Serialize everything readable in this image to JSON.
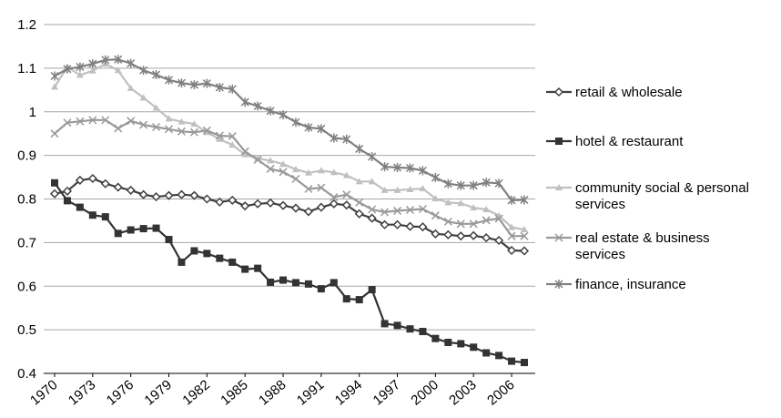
{
  "chart_data": {
    "type": "line",
    "title": "",
    "xlabel": "",
    "ylabel": "",
    "ylim": [
      0.4,
      1.2
    ],
    "yticks": [
      "0.4",
      "0.5",
      "0.6",
      "0.7",
      "0.8",
      "0.9",
      "1",
      "1.1",
      "1.2"
    ],
    "xlim": [
      1970,
      2007
    ],
    "xticks": [
      "1970",
      "1973",
      "1976",
      "1979",
      "1982",
      "1985",
      "1988",
      "1991",
      "1994",
      "1997",
      "2000",
      "2003",
      "2006"
    ],
    "grid": "horizontal",
    "legend_position": "right",
    "x": [
      1970,
      1971,
      1972,
      1973,
      1974,
      1975,
      1976,
      1977,
      1978,
      1979,
      1980,
      1981,
      1982,
      1983,
      1984,
      1985,
      1986,
      1987,
      1988,
      1989,
      1990,
      1991,
      1992,
      1993,
      1994,
      1995,
      1996,
      1997,
      1998,
      1999,
      2000,
      2001,
      2002,
      2003,
      2004,
      2005,
      2006,
      2007
    ],
    "series": [
      {
        "name": "retail & wholesale",
        "color": "#404040",
        "marker": "diamond",
        "values": [
          0.812,
          0.818,
          0.843,
          0.847,
          0.835,
          0.827,
          0.82,
          0.81,
          0.805,
          0.808,
          0.81,
          0.808,
          0.8,
          0.793,
          0.797,
          0.784,
          0.789,
          0.791,
          0.785,
          0.779,
          0.771,
          0.781,
          0.789,
          0.786,
          0.766,
          0.756,
          0.741,
          0.741,
          0.737,
          0.736,
          0.72,
          0.718,
          0.715,
          0.716,
          0.711,
          0.705,
          0.682,
          0.681
        ]
      },
      {
        "name": "hotel & restaurant",
        "color": "#333333",
        "marker": "square",
        "values": [
          0.837,
          0.796,
          0.781,
          0.763,
          0.759,
          0.721,
          0.729,
          0.732,
          0.733,
          0.707,
          0.655,
          0.681,
          0.675,
          0.664,
          0.655,
          0.639,
          0.641,
          0.609,
          0.614,
          0.608,
          0.605,
          0.594,
          0.608,
          0.571,
          0.569,
          0.592,
          0.514,
          0.51,
          0.502,
          0.496,
          0.48,
          0.471,
          0.468,
          0.46,
          0.447,
          0.441,
          0.428,
          0.425
        ]
      },
      {
        "name": "community social & personal services",
        "color": "#c0c0c0",
        "marker": "triangle",
        "values": [
          1.057,
          1.103,
          1.084,
          1.094,
          1.11,
          1.095,
          1.054,
          1.032,
          1.009,
          0.984,
          0.977,
          0.972,
          0.953,
          0.937,
          0.924,
          0.902,
          0.893,
          0.888,
          0.88,
          0.868,
          0.86,
          0.865,
          0.861,
          0.854,
          0.84,
          0.84,
          0.82,
          0.82,
          0.822,
          0.824,
          0.801,
          0.792,
          0.79,
          0.78,
          0.776,
          0.762,
          0.735,
          0.73
        ]
      },
      {
        "name": "real estate & business services",
        "color": "#999999",
        "marker": "x",
        "values": [
          0.95,
          0.975,
          0.978,
          0.981,
          0.981,
          0.962,
          0.979,
          0.97,
          0.965,
          0.96,
          0.955,
          0.953,
          0.957,
          0.945,
          0.944,
          0.909,
          0.89,
          0.869,
          0.862,
          0.846,
          0.823,
          0.826,
          0.804,
          0.81,
          0.792,
          0.776,
          0.77,
          0.773,
          0.775,
          0.777,
          0.762,
          0.748,
          0.743,
          0.743,
          0.751,
          0.755,
          0.715,
          0.715
        ]
      },
      {
        "name": "finance, insurance",
        "color": "#808080",
        "marker": "star",
        "values": [
          1.082,
          1.098,
          1.103,
          1.11,
          1.119,
          1.12,
          1.111,
          1.095,
          1.085,
          1.073,
          1.066,
          1.062,
          1.065,
          1.056,
          1.052,
          1.022,
          1.013,
          1.002,
          0.993,
          0.976,
          0.964,
          0.961,
          0.94,
          0.937,
          0.915,
          0.897,
          0.874,
          0.872,
          0.871,
          0.865,
          0.849,
          0.835,
          0.831,
          0.831,
          0.838,
          0.836,
          0.797,
          0.798
        ]
      }
    ]
  }
}
